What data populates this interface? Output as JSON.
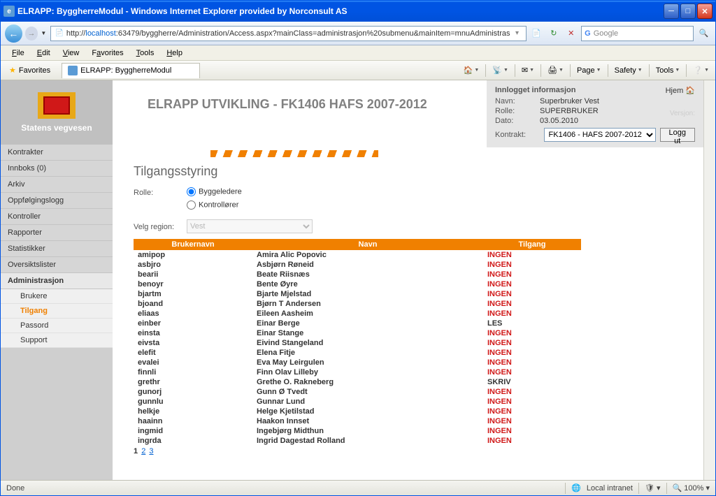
{
  "window": {
    "title": "ELRAPP: ByggherreModul - Windows Internet Explorer provided by Norconsult AS"
  },
  "address": {
    "prefix": "http://",
    "host": "localhost",
    "path": ":63479/byggherre/Administration/Access.aspx?mainClass=administrasjon%20submenu&mainItem=mnuAdministras"
  },
  "search": {
    "placeholder": "Google"
  },
  "menus": {
    "file": "File",
    "edit": "Edit",
    "view": "View",
    "favorites": "Favorites",
    "tools": "Tools",
    "help": "Help"
  },
  "favbar": {
    "favorites": "Favorites",
    "tab_title": "ELRAPP: ByggherreModul",
    "tool_page": "Page",
    "tool_safety": "Safety",
    "tool_tools": "Tools"
  },
  "logo": {
    "org": "Statens vegvesen"
  },
  "sidebar": {
    "items": [
      {
        "label": "Kontrakter"
      },
      {
        "label": "Innboks (0)"
      },
      {
        "label": "Arkiv"
      },
      {
        "label": "Oppfølgingslogg"
      },
      {
        "label": "Kontroller"
      },
      {
        "label": "Rapporter"
      },
      {
        "label": "Statistikker"
      },
      {
        "label": "Oversiktslister"
      },
      {
        "label": "Administrasjon",
        "active": true
      }
    ],
    "subs": [
      {
        "label": "Brukere"
      },
      {
        "label": "Tilgang",
        "active": true
      },
      {
        "label": "Passord"
      },
      {
        "label": "Support"
      }
    ]
  },
  "header": {
    "title": "ELRAPP UTVIKLING - FK1406 HAFS 2007-2012"
  },
  "info": {
    "title": "Innlogget informasjon",
    "name_label": "Navn:",
    "name": "Superbruker Vest",
    "role_label": "Rolle:",
    "role": "SUPERBRUKER",
    "date_label": "Dato:",
    "date": "03.05.2010",
    "kontrakt_label": "Kontrakt:",
    "kontrakt": "FK1406 - HAFS 2007-2012",
    "hjem": "Hjem",
    "versjon": "Versjon:",
    "logout": "Logg ut"
  },
  "section": {
    "title": "Tilgangsstyring",
    "role_label": "Rolle:",
    "radio1": "Byggeledere",
    "radio2": "Kontrollører",
    "region_label": "Velg region:",
    "region_value": "Vest"
  },
  "table": {
    "headers": {
      "user": "Brukernavn",
      "name": "Navn",
      "access": "Tilgang"
    },
    "rows": [
      {
        "u": "amipop",
        "n": "Amira Alic Popovic",
        "t": "INGEN"
      },
      {
        "u": "asbjro",
        "n": "Asbjørn Røneid",
        "t": "INGEN"
      },
      {
        "u": "bearii",
        "n": "Beate Riisnæs",
        "t": "INGEN"
      },
      {
        "u": "benoyr",
        "n": "Bente Øyre",
        "t": "INGEN"
      },
      {
        "u": "bjartm",
        "n": "Bjarte Mjelstad",
        "t": "INGEN"
      },
      {
        "u": "bjoand",
        "n": "Bjørn T Andersen",
        "t": "INGEN"
      },
      {
        "u": "eliaas",
        "n": "Eileen Aasheim",
        "t": "INGEN"
      },
      {
        "u": "einber",
        "n": "Einar Berge",
        "t": "LES"
      },
      {
        "u": "einsta",
        "n": "Einar Stange",
        "t": "INGEN"
      },
      {
        "u": "eivsta",
        "n": "Eivind Stangeland",
        "t": "INGEN"
      },
      {
        "u": "elefit",
        "n": "Elena Fitje",
        "t": "INGEN"
      },
      {
        "u": "evalei",
        "n": "Eva May Leirgulen",
        "t": "INGEN"
      },
      {
        "u": "finnli",
        "n": "Finn Olav Lilleby",
        "t": "INGEN"
      },
      {
        "u": "grethr",
        "n": "Grethe O. Rakneberg",
        "t": "SKRIV"
      },
      {
        "u": "gunorj",
        "n": "Gunn Ø Tvedt",
        "t": "INGEN"
      },
      {
        "u": "gunnlu",
        "n": "Gunnar Lund",
        "t": "INGEN"
      },
      {
        "u": "helkje",
        "n": "Helge Kjetilstad",
        "t": "INGEN"
      },
      {
        "u": "haainn",
        "n": "Haakon Innset",
        "t": "INGEN"
      },
      {
        "u": "ingmid",
        "n": "Ingebjørg Midthun",
        "t": "INGEN"
      },
      {
        "u": "ingrda",
        "n": "Ingrid Dagestad Rolland",
        "t": "INGEN"
      }
    ],
    "pager": {
      "current": "1",
      "p2": "2",
      "p3": "3"
    }
  },
  "status": {
    "done": "Done",
    "zone": "Local intranet",
    "zoom": "100%"
  }
}
